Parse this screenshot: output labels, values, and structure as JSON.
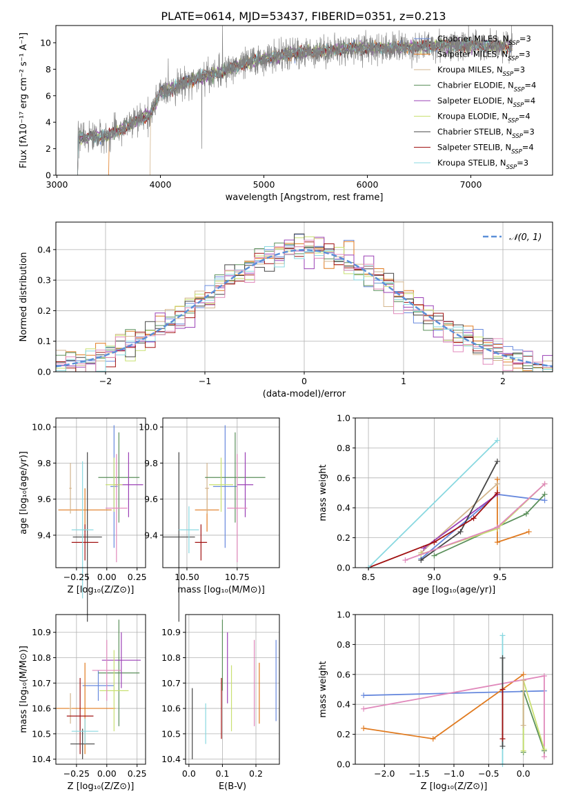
{
  "page": {
    "title": "PLATE=0614, MJD=53437, FIBERID=0351, z=0.213"
  },
  "colors": [
    "#6688dd",
    "#e07a1f",
    "#d2b48c",
    "#5a8f5a",
    "#9a3fb5",
    "#c8e070",
    "#444444",
    "#a01010",
    "#88d8e0",
    "#e088bb"
  ],
  "chart_data": [
    {
      "id": "spectrum",
      "type": "line",
      "xlabel": "wavelength [Angstrom, rest frame]",
      "ylabel": "Flux [fλ10⁻¹⁷ erg cm⁻² s⁻¹ A⁻¹]",
      "xlim": [
        2990,
        7790
      ],
      "ylim": [
        0,
        11.3
      ],
      "xticks": [
        3000,
        4000,
        5000,
        6000,
        7000
      ],
      "yticks": [
        0,
        2,
        4,
        6,
        8,
        10
      ],
      "grid": false,
      "legend_position": "top-right",
      "continuum": {
        "x": [
          3200,
          3500,
          3700,
          3900,
          4000,
          4300,
          4600,
          4800,
          5000,
          5300,
          5600,
          5900,
          6200,
          6500,
          6800,
          7100,
          7400
        ],
        "y": [
          2.8,
          3.0,
          3.8,
          4.6,
          6.2,
          7.2,
          7.8,
          8.4,
          8.8,
          9.2,
          9.4,
          9.6,
          9.6,
          9.7,
          9.8,
          9.8,
          9.7
        ]
      },
      "series": [
        {
          "name": "Chabrier MILES",
          "nssp": "3",
          "color": "#6688dd"
        },
        {
          "name": "Salpeter MILES",
          "nssp": "3",
          "color": "#e07a1f"
        },
        {
          "name": "Kroupa MILES",
          "nssp": "3",
          "color": "#d2b48c"
        },
        {
          "name": "Chabrier ELODIE",
          "nssp": "4",
          "color": "#5a8f5a"
        },
        {
          "name": "Salpeter ELODIE",
          "nssp": "4",
          "color": "#9a3fb5"
        },
        {
          "name": "Kroupa ELODIE",
          "nssp": "4",
          "color": "#c8e070"
        },
        {
          "name": "Chabrier STELIB",
          "nssp": "3",
          "color": "#444444"
        },
        {
          "name": "Salpeter STELIB",
          "nssp": "4",
          "color": "#a01010"
        },
        {
          "name": "Kroupa STELIB",
          "nssp": "3",
          "color": "#88d8e0"
        }
      ],
      "data_color": "#808080"
    },
    {
      "id": "residuals",
      "type": "line",
      "xlabel": "(data-model)/error",
      "ylabel": "Normed distribution",
      "xlim": [
        -2.5,
        2.5
      ],
      "ylim": [
        0,
        0.49
      ],
      "xticks": [
        -2,
        -1,
        0,
        1,
        2
      ],
      "yticks": [
        0.0,
        0.1,
        0.2,
        0.3,
        0.4
      ],
      "grid": true,
      "legend_position": "top-right",
      "legend": "𝒩(0, 1)",
      "gaussian_color": "#5b8fd8",
      "hist_step": 0.1
    },
    {
      "id": "age_vs_Z",
      "type": "scatter",
      "xlabel": "Z [log₁₀(Z/Z⊙)]",
      "ylabel": "age  [log₁₀(age/yr)]",
      "xlim": [
        -0.42,
        0.32
      ],
      "ylim": [
        9.22,
        10.05
      ],
      "xticks": [
        -0.25,
        0.0,
        0.25
      ],
      "yticks": [
        9.4,
        9.6,
        9.8,
        10.0
      ],
      "grid": true,
      "points": [
        {
          "x": 0.06,
          "y": 9.67,
          "xerr": 0.03,
          "yerr": 0.34,
          "color": "#6688dd"
        },
        {
          "x": -0.18,
          "y": 9.54,
          "xerr": 0.22,
          "yerr": 0.12,
          "color": "#e07a1f"
        },
        {
          "x": -0.3,
          "y": 9.66,
          "xerr": 0.01,
          "yerr": 0.14,
          "color": "#d2b48c"
        },
        {
          "x": 0.1,
          "y": 9.72,
          "xerr": 0.17,
          "yerr": 0.25,
          "color": "#5a8f5a"
        },
        {
          "x": 0.18,
          "y": 9.68,
          "xerr": 0.12,
          "yerr": 0.18,
          "color": "#9a3fb5"
        },
        {
          "x": 0.06,
          "y": 9.68,
          "xerr": 0.07,
          "yerr": 0.15,
          "color": "#c8e070"
        },
        {
          "x": -0.16,
          "y": 9.39,
          "xerr": 0.12,
          "yerr": 0.47,
          "color": "#444444"
        },
        {
          "x": -0.18,
          "y": 9.36,
          "xerr": 0.11,
          "yerr": 0.1,
          "color": "#a01010"
        },
        {
          "x": -0.2,
          "y": 9.43,
          "xerr": 0.09,
          "yerr": 0.38,
          "color": "#88d8e0"
        },
        {
          "x": 0.08,
          "y": 9.55,
          "xerr": 0.09,
          "yerr": 0.3,
          "color": "#e088bb"
        }
      ]
    },
    {
      "id": "age_vs_mass",
      "type": "scatter",
      "xlabel": "mass [log₁₀(M/M⊙)]",
      "ylabel": "",
      "xlim": [
        10.38,
        10.96
      ],
      "ylim": [
        9.22,
        10.05
      ],
      "xticks": [
        10.5,
        10.75
      ],
      "yticks": [
        9.4,
        9.6,
        9.8,
        10.0
      ],
      "grid": true,
      "points": [
        {
          "x": 10.69,
          "y": 9.67,
          "xerr": 0.06,
          "yerr": 0.34,
          "color": "#6688dd"
        },
        {
          "x": 10.6,
          "y": 9.54,
          "xerr": 0.06,
          "yerr": 0.12,
          "color": "#e07a1f"
        },
        {
          "x": 10.6,
          "y": 9.66,
          "xerr": 0.01,
          "yerr": 0.14,
          "color": "#d2b48c"
        },
        {
          "x": 10.74,
          "y": 9.72,
          "xerr": 0.15,
          "yerr": 0.25,
          "color": "#5a8f5a"
        },
        {
          "x": 10.79,
          "y": 9.68,
          "xerr": 0.04,
          "yerr": 0.18,
          "color": "#9a3fb5"
        },
        {
          "x": 10.67,
          "y": 9.68,
          "xerr": 0.06,
          "yerr": 0.15,
          "color": "#c8e070"
        },
        {
          "x": 10.46,
          "y": 9.39,
          "xerr": 0.08,
          "yerr": 0.47,
          "color": "#444444"
        },
        {
          "x": 10.57,
          "y": 9.36,
          "xerr": 0.03,
          "yerr": 0.1,
          "color": "#a01010"
        },
        {
          "x": 10.51,
          "y": 9.43,
          "xerr": 0.05,
          "yerr": 0.13,
          "color": "#88d8e0"
        },
        {
          "x": 10.75,
          "y": 9.55,
          "xerr": 0.05,
          "yerr": 0.3,
          "color": "#e088bb"
        }
      ]
    },
    {
      "id": "mass_weight_vs_age",
      "type": "line",
      "xlabel": "age  [log₁₀(age/yr)]",
      "ylabel": "mass weight",
      "xlim": [
        8.4,
        9.9
      ],
      "ylim": [
        0,
        1.0
      ],
      "xticks": [
        8.5,
        9.0,
        9.5
      ],
      "yticks": [
        0.0,
        0.2,
        0.4,
        0.6,
        0.8,
        1.0
      ],
      "grid": true,
      "series": [
        {
          "color": "#6688dd",
          "x": [
            8.9,
            9.48,
            9.84
          ],
          "y": [
            0.06,
            0.49,
            0.45
          ]
        },
        {
          "color": "#e07a1f",
          "x": [
            9.48,
            9.48,
            9.72
          ],
          "y": [
            0.59,
            0.17,
            0.24
          ]
        },
        {
          "color": "#d2b48c",
          "x": [
            8.9,
            9.48
          ],
          "y": [
            0.1,
            0.56
          ]
        },
        {
          "color": "#5a8f5a",
          "x": [
            9.0,
            9.7,
            9.84
          ],
          "y": [
            0.08,
            0.36,
            0.49
          ]
        },
        {
          "color": "#9a3fb5",
          "x": [
            8.92,
            9.48
          ],
          "y": [
            0.13,
            0.49
          ]
        },
        {
          "color": "#c8e070",
          "x": [
            8.9,
            9.48,
            9.84
          ],
          "y": [
            0.09,
            0.26,
            0.56
          ]
        },
        {
          "color": "#444444",
          "x": [
            8.9,
            9.2,
            9.48
          ],
          "y": [
            0.05,
            0.24,
            0.71
          ]
        },
        {
          "color": "#a01010",
          "x": [
            8.5,
            9.0,
            9.3,
            9.48
          ],
          "y": [
            0.0,
            0.17,
            0.33,
            0.5
          ]
        },
        {
          "color": "#88d8e0",
          "x": [
            8.5,
            9.48
          ],
          "y": [
            0.0,
            0.85
          ]
        },
        {
          "color": "#e088bb",
          "x": [
            8.78,
            9.48,
            9.84
          ],
          "y": [
            0.05,
            0.27,
            0.56
          ]
        }
      ]
    },
    {
      "id": "mass_vs_Z",
      "type": "scatter",
      "xlabel": "Z [log₁₀(Z/Z⊙)]",
      "ylabel": "mass [log₁₀(M/M⊙)]",
      "xlim": [
        -0.42,
        0.32
      ],
      "ylim": [
        10.38,
        10.97
      ],
      "xticks": [
        -0.25,
        0.0,
        0.25
      ],
      "yticks": [
        10.4,
        10.5,
        10.6,
        10.7,
        10.8,
        10.9
      ],
      "grid": true,
      "points": [
        {
          "x": -0.07,
          "y": 10.69,
          "xerr": 0.13,
          "yerr": 0.06,
          "color": "#6688dd"
        },
        {
          "x": -0.18,
          "y": 10.6,
          "xerr": 0.25,
          "yerr": 0.18,
          "color": "#e07a1f"
        },
        {
          "x": -0.3,
          "y": 10.6,
          "xerr": 0.01,
          "yerr": 0.06,
          "color": "#d2b48c"
        },
        {
          "x": 0.1,
          "y": 10.74,
          "xerr": 0.17,
          "yerr": 0.21,
          "color": "#5a8f5a"
        },
        {
          "x": 0.12,
          "y": 10.79,
          "xerr": 0.16,
          "yerr": 0.11,
          "color": "#9a3fb5"
        },
        {
          "x": 0.06,
          "y": 10.67,
          "xerr": 0.12,
          "yerr": 0.16,
          "color": "#c8e070"
        },
        {
          "x": -0.2,
          "y": 10.46,
          "xerr": 0.1,
          "yerr": 0.06,
          "color": "#444444"
        },
        {
          "x": -0.22,
          "y": 10.57,
          "xerr": 0.11,
          "yerr": 0.15,
          "color": "#a01010"
        },
        {
          "x": -0.18,
          "y": 10.51,
          "xerr": 0.11,
          "yerr": 0.05,
          "color": "#88d8e0"
        },
        {
          "x": 0.0,
          "y": 10.75,
          "xerr": 0.12,
          "yerr": 0.12,
          "color": "#e088bb"
        }
      ]
    },
    {
      "id": "mass_vs_ebv",
      "type": "scatter",
      "xlabel": "E(B-V)",
      "ylabel": "",
      "xlim": [
        -0.01,
        0.27
      ],
      "ylim": [
        10.38,
        10.97
      ],
      "xticks": [
        0.0,
        0.1,
        0.2
      ],
      "yticks": [
        10.4,
        10.5,
        10.6,
        10.7,
        10.8,
        10.9
      ],
      "grid": true,
      "points": [
        {
          "x": 0.26,
          "y": 10.71,
          "yerr": 0.16,
          "color": "#6688dd"
        },
        {
          "x": 0.21,
          "y": 10.66,
          "yerr": 0.12,
          "color": "#e07a1f"
        },
        {
          "x": 0.1,
          "y": 10.81,
          "yerr": 0.14,
          "color": "#5a8f5a"
        },
        {
          "x": 0.115,
          "y": 10.76,
          "yerr": 0.14,
          "color": "#9a3fb5"
        },
        {
          "x": 0.127,
          "y": 10.64,
          "yerr": 0.13,
          "color": "#c8e070"
        },
        {
          "x": 0.01,
          "y": 10.54,
          "yerr": 0.14,
          "color": "#444444"
        },
        {
          "x": 0.097,
          "y": 10.6,
          "yerr": 0.12,
          "color": "#a01010"
        },
        {
          "x": 0.05,
          "y": 10.54,
          "yerr": 0.08,
          "color": "#88d8e0"
        },
        {
          "x": 0.195,
          "y": 10.7,
          "yerr": 0.17,
          "color": "#e088bb"
        }
      ]
    },
    {
      "id": "mass_weight_vs_Z",
      "type": "line",
      "xlabel": "Z [log₁₀(Z/Z⊙)]",
      "ylabel": "mass weight",
      "xlim": [
        -2.42,
        0.42
      ],
      "ylim": [
        0,
        1.0
      ],
      "xticks": [
        -2.0,
        -1.5,
        -1.0,
        -0.5,
        0.0
      ],
      "yticks": [
        0.0,
        0.2,
        0.4,
        0.6,
        0.8,
        1.0
      ],
      "grid": true,
      "series": [
        {
          "color": "#6688dd",
          "x": [
            -2.3,
            0.3
          ],
          "y": [
            0.46,
            0.49
          ]
        },
        {
          "color": "#e07a1f",
          "x": [
            -2.3,
            -1.3,
            0.0
          ],
          "y": [
            0.24,
            0.17,
            0.6
          ]
        },
        {
          "color": "#e088bb",
          "x": [
            -2.3,
            0.3,
            0.3
          ],
          "y": [
            0.37,
            0.59,
            0.05
          ]
        },
        {
          "color": "#88d8e0",
          "x": [
            -0.3,
            -0.3
          ],
          "y": [
            0.0,
            0.86
          ]
        },
        {
          "color": "#444444",
          "x": [
            -0.3,
            -0.3
          ],
          "y": [
            0.12,
            0.71
          ]
        },
        {
          "color": "#a01010",
          "x": [
            -0.3,
            -0.3
          ],
          "y": [
            0.17,
            0.5
          ]
        },
        {
          "color": "#5a8f5a",
          "x": [
            0.0,
            0.0,
            0.3
          ],
          "y": [
            0.08,
            0.49,
            0.09
          ]
        },
        {
          "color": "#c8e070",
          "x": [
            0.0,
            0.0,
            0.3
          ],
          "y": [
            0.09,
            0.56,
            0.1
          ]
        },
        {
          "color": "#d2b48c",
          "x": [
            0.0,
            0.0
          ],
          "y": [
            0.26,
            0.56
          ]
        }
      ]
    }
  ]
}
